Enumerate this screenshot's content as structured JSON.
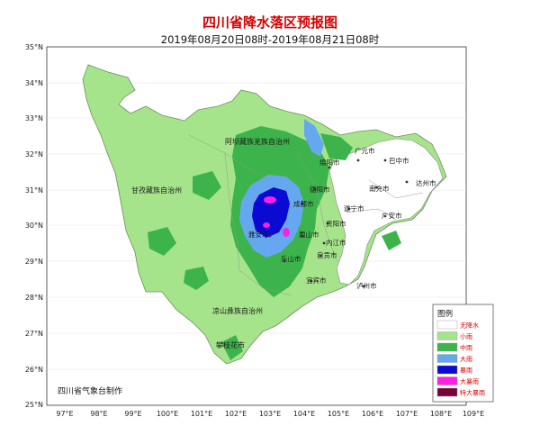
{
  "title": "四川省降水落区预报图",
  "subtitle": "2019年08月20日08时-2019年08月21日08时",
  "axes": {
    "lat_ticks": [
      "35°N",
      "34°N",
      "33°N",
      "32°N",
      "31°N",
      "30°N",
      "29°N",
      "28°N",
      "27°N",
      "26°N",
      "25°N"
    ],
    "lon_ticks": [
      "97°E",
      "98°E",
      "99°E",
      "100°E",
      "101°E",
      "102°E",
      "103°E",
      "104°E",
      "105°E",
      "106°E",
      "107°E",
      "108°E",
      "109°E"
    ]
  },
  "regions": {
    "aba": "阿坝藏族羌族自治州",
    "ganzi": "甘孜藏族自治州",
    "liangshan": "凉山彝族自治州",
    "panzhihua": "攀枝花市"
  },
  "cities": {
    "guangyuan": "广元市",
    "bazhong": "巴中市",
    "mianyang": "绵阳市",
    "dazhou": "达州市",
    "deyang": "德阳市",
    "nanchong": "南充市",
    "chengdu": "成都市",
    "suining": "遂宁市",
    "guangan": "广安市",
    "ziyang": "资阳市",
    "yaan": "雅安市",
    "meishan": "眉山市",
    "neijiang": "内江市",
    "leshan": "乐山市",
    "zigong": "自贡市",
    "yibin": "宜宾市",
    "luzhou": "泸州市"
  },
  "legend": {
    "title": "图例",
    "items": [
      {
        "label": "无降水",
        "color": "#ffffff"
      },
      {
        "label": "小雨",
        "color": "#a6e48c"
      },
      {
        "label": "中雨",
        "color": "#3cb44b"
      },
      {
        "label": "大雨",
        "color": "#66a8f0"
      },
      {
        "label": "暴雨",
        "color": "#0a0ad2"
      },
      {
        "label": "大暴雨",
        "color": "#ff1ee6"
      },
      {
        "label": "特大暴雨",
        "color": "#7a003c"
      }
    ]
  },
  "footer": "四川省气象台制作"
}
